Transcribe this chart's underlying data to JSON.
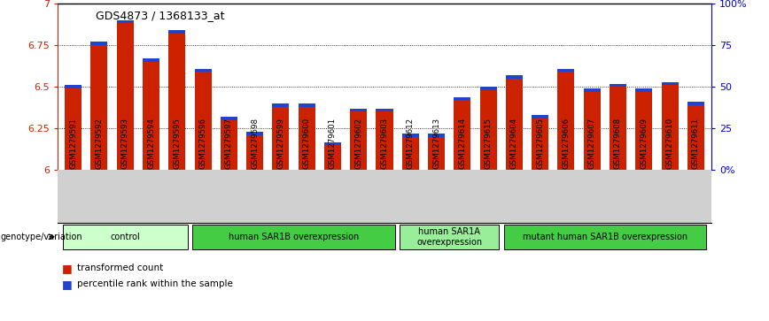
{
  "title": "GDS4873 / 1368133_at",
  "samples": [
    "GSM1279591",
    "GSM1279592",
    "GSM1279593",
    "GSM1279594",
    "GSM1279595",
    "GSM1279596",
    "GSM1279597",
    "GSM1279598",
    "GSM1279599",
    "GSM1279600",
    "GSM1279601",
    "GSM1279602",
    "GSM1279603",
    "GSM1279612",
    "GSM1279613",
    "GSM1279614",
    "GSM1279615",
    "GSM1279604",
    "GSM1279605",
    "GSM1279606",
    "GSM1279607",
    "GSM1279608",
    "GSM1279609",
    "GSM1279610",
    "GSM1279611"
  ],
  "red_values": [
    6.49,
    6.75,
    6.88,
    6.65,
    6.82,
    6.59,
    6.3,
    6.21,
    6.38,
    6.38,
    6.15,
    6.35,
    6.35,
    6.2,
    6.2,
    6.42,
    6.48,
    6.55,
    6.31,
    6.59,
    6.47,
    6.5,
    6.47,
    6.51,
    6.39
  ],
  "blue_heights": [
    0.018,
    0.018,
    0.018,
    0.018,
    0.018,
    0.018,
    0.018,
    0.018,
    0.018,
    0.018,
    0.018,
    0.018,
    0.018,
    0.018,
    0.018,
    0.018,
    0.018,
    0.018,
    0.018,
    0.018,
    0.018,
    0.018,
    0.018,
    0.018,
    0.018
  ],
  "ymin": 6.0,
  "ymax": 7.0,
  "yticks": [
    6.0,
    6.25,
    6.5,
    6.75,
    7.0
  ],
  "ytick_labels": [
    "6",
    "6.25",
    "6.5",
    "6.75",
    "7"
  ],
  "right_yticks": [
    0,
    25,
    50,
    75,
    100
  ],
  "right_ytick_labels": [
    "0%",
    "25",
    "50",
    "75",
    "100%"
  ],
  "groups": [
    {
      "label": "control",
      "start": 0,
      "end": 4,
      "color": "#ccffcc"
    },
    {
      "label": "human SAR1B overexpression",
      "start": 5,
      "end": 12,
      "color": "#44cc44"
    },
    {
      "label": "human SAR1A\noverexpression",
      "start": 13,
      "end": 16,
      "color": "#99ee99"
    },
    {
      "label": "mutant human SAR1B overexpression",
      "start": 17,
      "end": 24,
      "color": "#44cc44"
    }
  ],
  "bar_color_red": "#cc2200",
  "bar_color_blue": "#2244cc",
  "bar_width": 0.65,
  "left_label_color": "#cc2200",
  "right_label_color": "#0000cc",
  "genotype_label": "genotype/variation",
  "legend_items": [
    "transformed count",
    "percentile rank within the sample"
  ]
}
